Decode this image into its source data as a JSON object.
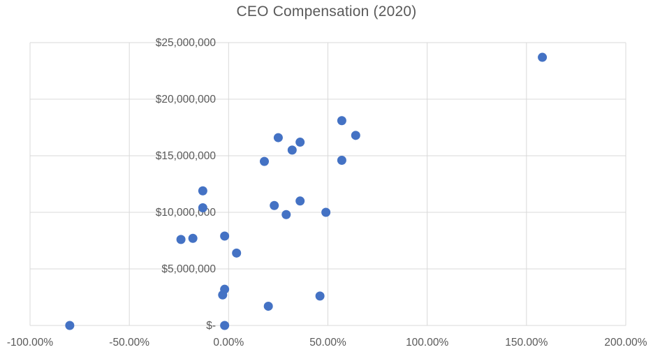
{
  "title": "CEO Compensation (2020)",
  "colors": {
    "background": "#FFFFFF",
    "point": "#4472C4",
    "grid": "#D9D9D9",
    "axis_text": "#595959",
    "title_text": "#595959"
  },
  "chart_data": {
    "type": "scatter",
    "title": "CEO Compensation (2020)",
    "xlabel": "",
    "ylabel": "",
    "x_unit": "percent",
    "y_unit": "USD",
    "xlim": [
      -100,
      200
    ],
    "ylim": [
      0,
      25000000
    ],
    "grid": true,
    "legend": "none",
    "x_ticks": [
      {
        "value": -100,
        "label": "-100.00%"
      },
      {
        "value": -50,
        "label": "-50.00%"
      },
      {
        "value": 0,
        "label": "0.00%"
      },
      {
        "value": 50,
        "label": "50.00%"
      },
      {
        "value": 100,
        "label": "100.00%"
      },
      {
        "value": 150,
        "label": "150.00%"
      },
      {
        "value": 200,
        "label": "200.00%"
      }
    ],
    "y_ticks": [
      {
        "value": 0,
        "label": "$-"
      },
      {
        "value": 5000000,
        "label": "$5,000,000"
      },
      {
        "value": 10000000,
        "label": "$10,000,000"
      },
      {
        "value": 15000000,
        "label": "$15,000,000"
      },
      {
        "value": 20000000,
        "label": "$20,000,000"
      },
      {
        "value": 25000000,
        "label": "$25,000,000"
      }
    ],
    "points": [
      {
        "x": -80,
        "y": 0
      },
      {
        "x": -24,
        "y": 7600000
      },
      {
        "x": -18,
        "y": 7700000
      },
      {
        "x": -13,
        "y": 11900000
      },
      {
        "x": -13,
        "y": 10400000
      },
      {
        "x": -2,
        "y": 7900000
      },
      {
        "x": -2,
        "y": 3200000
      },
      {
        "x": -3,
        "y": 2700000
      },
      {
        "x": -2,
        "y": 0
      },
      {
        "x": 4,
        "y": 6400000
      },
      {
        "x": 18,
        "y": 14500000
      },
      {
        "x": 20,
        "y": 1700000
      },
      {
        "x": 23,
        "y": 10600000
      },
      {
        "x": 25,
        "y": 16600000
      },
      {
        "x": 29,
        "y": 9800000
      },
      {
        "x": 32,
        "y": 15500000
      },
      {
        "x": 36,
        "y": 16200000
      },
      {
        "x": 36,
        "y": 11000000
      },
      {
        "x": 46,
        "y": 2600000
      },
      {
        "x": 49,
        "y": 10000000
      },
      {
        "x": 57,
        "y": 18100000
      },
      {
        "x": 57,
        "y": 14600000
      },
      {
        "x": 64,
        "y": 16800000
      },
      {
        "x": 158,
        "y": 23700000
      }
    ]
  }
}
